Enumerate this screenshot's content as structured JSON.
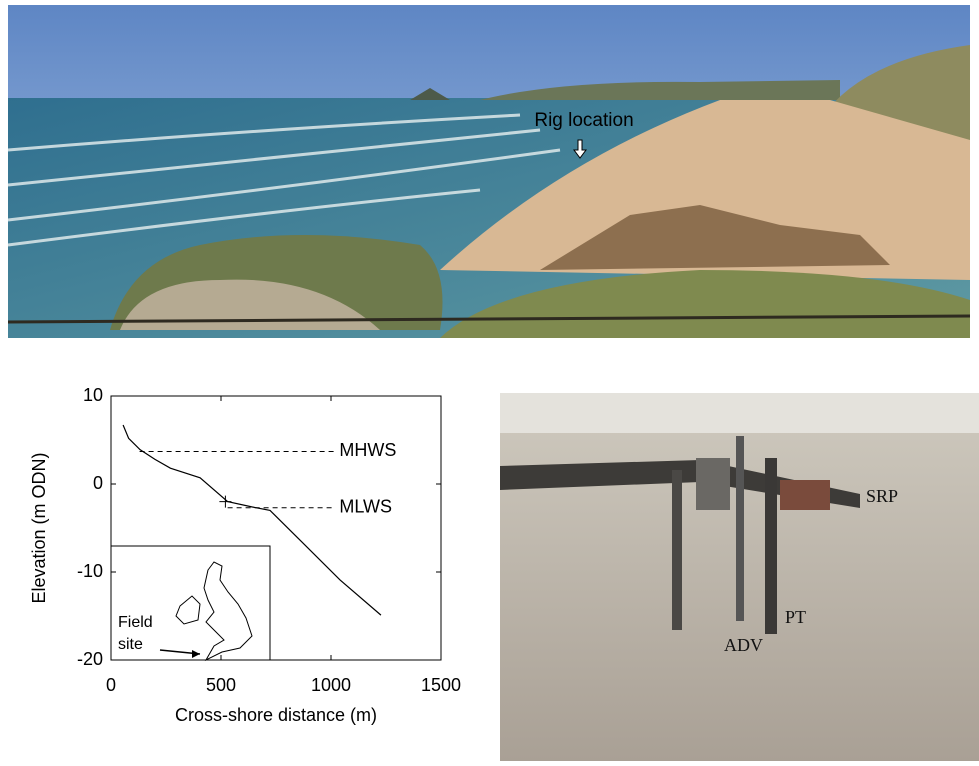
{
  "top_photo": {
    "annotation": "Rig location"
  },
  "chart_data": {
    "type": "line",
    "xlabel": "Cross-shore distance (m)",
    "ylabel": "Elevation (m ODN)",
    "xlim": [
      0,
      1500
    ],
    "ylim": [
      -20,
      10
    ],
    "xticks": [
      0,
      500,
      1000,
      1500
    ],
    "yticks": [
      -20,
      -10,
      0,
      10
    ],
    "series": [
      {
        "color": "#000000",
        "x": [
          55,
          80,
          132,
          200,
          270,
          405,
          530,
          640,
          723,
          860,
          1041,
          1227
        ],
        "values": [
          6.7,
          5.2,
          3.9,
          2.8,
          1.8,
          0.7,
          -2,
          -2.6,
          -3,
          -6.4,
          -10.9,
          -14.9
        ]
      }
    ],
    "reference_lines": [
      {
        "label": "MHWS",
        "y": 3.7,
        "x": [
          130,
          1020
        ]
      },
      {
        "label": "MLWS",
        "y": -2.7,
        "x": [
          530,
          1020
        ]
      }
    ],
    "marker": {
      "x": 520,
      "y": -2
    }
  },
  "inset": {
    "label": [
      "Field",
      "site"
    ]
  },
  "rig_photo": {
    "labels": [
      "SRP",
      "PT",
      "ADV"
    ]
  }
}
